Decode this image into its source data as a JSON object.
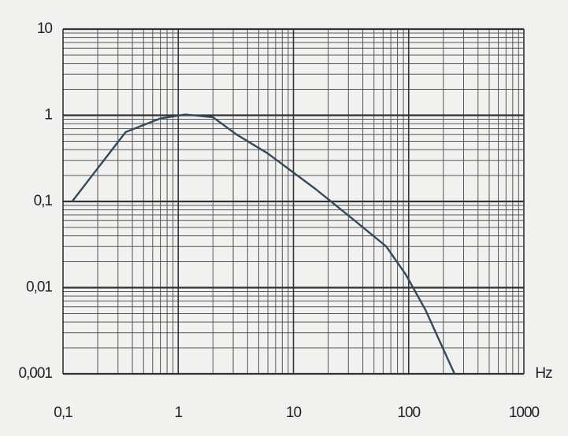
{
  "chart_data": {
    "type": "line",
    "x": [
      0.12,
      0.35,
      0.7,
      1.15,
      2,
      3.2,
      6,
      15.5,
      34,
      64,
      95,
      140,
      250
    ],
    "series": [
      {
        "color": "#34495c",
        "values": [
          0.1,
          0.64,
          0.92,
          1.02,
          0.95,
          0.6,
          0.36,
          0.14,
          0.06,
          0.03,
          0.014,
          0.0055,
          0.001
        ]
      }
    ],
    "xlim": [
      0.1,
      1000
    ],
    "ylim": [
      0.001,
      10
    ],
    "xticks": [
      {
        "value": 0.1,
        "label": "0,1"
      },
      1,
      10,
      100,
      1000
    ],
    "yticks": [
      {
        "value": 0.001,
        "label": "0,001"
      },
      {
        "value": 0.01,
        "label": "0,01"
      },
      {
        "value": 0.1,
        "label": "0,1"
      },
      1,
      10
    ],
    "xlabel": "Hz",
    "xscale": "log",
    "yscale": "log",
    "grid": true
  }
}
